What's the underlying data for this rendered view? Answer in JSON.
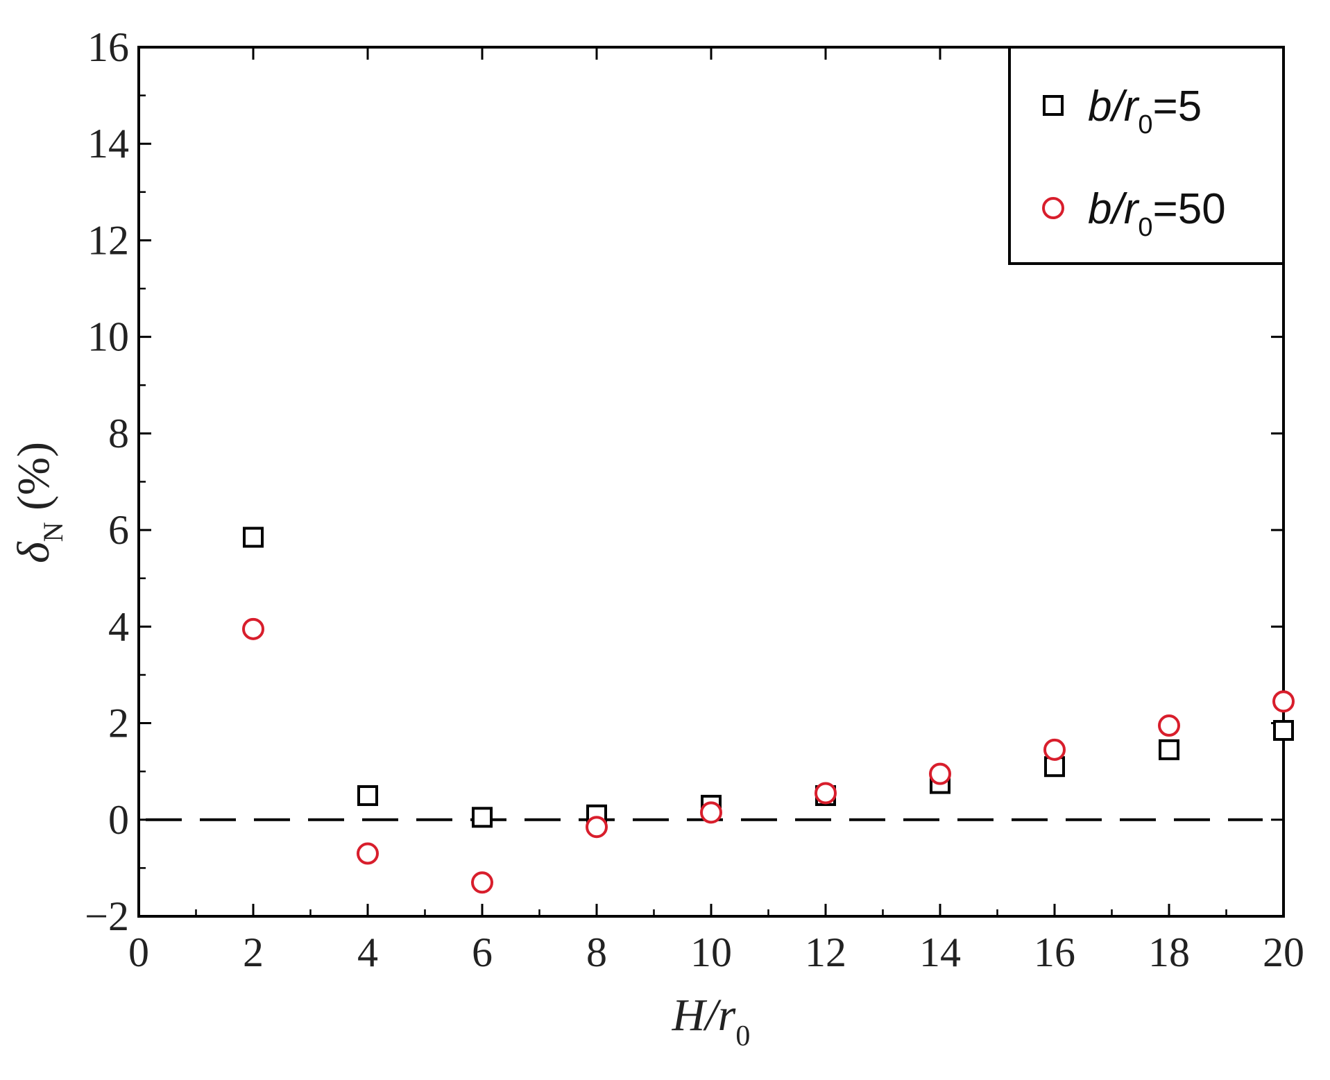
{
  "chart_data": {
    "type": "scatter",
    "xlim": [
      0,
      20
    ],
    "ylim": [
      -2,
      16
    ],
    "xticks": [
      "0",
      "2",
      "4",
      "6",
      "8",
      "10",
      "12",
      "14",
      "16",
      "18",
      "20"
    ],
    "yticks": [
      "−2",
      "0",
      "2",
      "4",
      "6",
      "8",
      "10",
      "12",
      "14",
      "16"
    ],
    "xlabel": {
      "main": "H/r",
      "sub": "0"
    },
    "ylabel": {
      "main": "δ",
      "sub": "N",
      "suffix": " (%)"
    },
    "reference_line": {
      "y": 0,
      "style": "dashed",
      "color": "#000000"
    },
    "grid": false,
    "legend_position": "top-right",
    "series": [
      {
        "label_main": "b/r",
        "label_sub": "0",
        "label_tail": "=5",
        "marker": "square",
        "color": "#000000",
        "x": [
          2,
          4,
          6,
          8,
          10,
          12,
          14,
          16,
          18,
          20
        ],
        "y": [
          5.85,
          0.5,
          0.05,
          0.1,
          0.3,
          0.5,
          0.75,
          1.1,
          1.45,
          1.85
        ]
      },
      {
        "label_main": "b/r",
        "label_sub": "0",
        "label_tail": "=50",
        "marker": "circle",
        "color": "#d81e2c",
        "x": [
          2,
          4,
          6,
          8,
          10,
          12,
          14,
          16,
          18,
          20
        ],
        "y": [
          3.95,
          -0.7,
          -1.3,
          -0.15,
          0.15,
          0.55,
          0.95,
          1.45,
          1.95,
          2.45
        ]
      }
    ]
  }
}
